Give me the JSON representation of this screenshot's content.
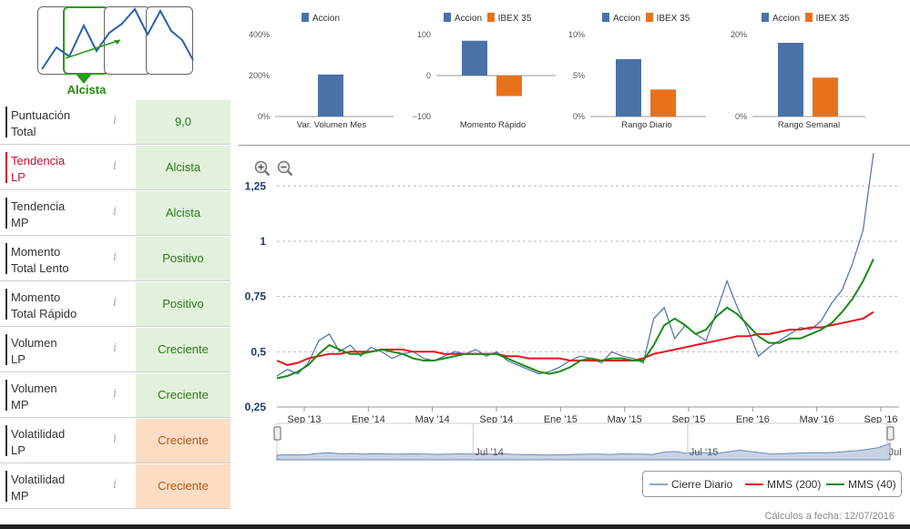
{
  "trend": {
    "selected_label": "Alcista",
    "color_selected": "#2a9a1a"
  },
  "metrics": [
    {
      "label": "Puntuación\nTotal",
      "value": "9,0",
      "tone": "green",
      "red_label": false
    },
    {
      "label": "Tendencia\nLP",
      "value": "Alcista",
      "tone": "green",
      "red_label": true
    },
    {
      "label": "Tendencia\nMP",
      "value": "Alcista",
      "tone": "green",
      "red_label": false
    },
    {
      "label": "Momento\nTotal Lento",
      "value": "Positivo",
      "tone": "green",
      "red_label": false
    },
    {
      "label": "Momento\nTotal Rápido",
      "value": "Positivo",
      "tone": "green",
      "red_label": false
    },
    {
      "label": "Volumen\nLP",
      "value": "Creciente",
      "tone": "green",
      "red_label": false
    },
    {
      "label": "Volumen\nMP",
      "value": "Creciente",
      "tone": "green",
      "red_label": false
    },
    {
      "label": "Volatilidad\nLP",
      "value": "Creciente",
      "tone": "orange",
      "red_label": false
    },
    {
      "label": "Volatilidad\nMP",
      "value": "Creciente",
      "tone": "orange",
      "red_label": false
    }
  ],
  "info_glyph": "i",
  "colors": {
    "accion": "#4a72a8",
    "ibex": "#e8721c",
    "green_bg": "#e2f1dc",
    "orange_bg": "#fcdcc3"
  },
  "mini_charts": {
    "legend_accion": "Accion",
    "legend_ibex": "IBEX 35",
    "charts": [
      {
        "caption": "Var. Volumen Mes",
        "ticks": [
          "400%",
          "200%",
          "0%"
        ],
        "ymin": 0,
        "ymax": 400,
        "accion": 205,
        "ibex": null
      },
      {
        "caption": "Momento Rápido",
        "ticks": [
          "100",
          "0",
          "−100"
        ],
        "ymin": -100,
        "ymax": 100,
        "accion": 85,
        "ibex": -50
      },
      {
        "caption": "Rango Diario",
        "ticks": [
          "10%",
          "5%",
          "0%"
        ],
        "ymin": 0,
        "ymax": 10,
        "accion": 7,
        "ibex": 3.3
      },
      {
        "caption": "Rango Semanal",
        "ticks": [
          "20%",
          "0%"
        ],
        "ymin": 0,
        "ymax": 20,
        "accion": 18,
        "ibex": 9.5
      }
    ]
  },
  "chart_data": {
    "type": "line",
    "y_ticks": [
      "1,25",
      "1",
      "0,75",
      "0,5",
      "0,25"
    ],
    "y_tick_values": [
      1.25,
      1.0,
      0.75,
      0.5,
      0.25
    ],
    "ylim": [
      0.25,
      1.35
    ],
    "x_ticks": [
      "Sep '13",
      "Ene '14",
      "May '14",
      "Sep '14",
      "Ene '15",
      "May '15",
      "Sep '15",
      "Ene '16",
      "May '16",
      "Sep '16"
    ],
    "navigator_labels": [
      "Jul '14",
      "Jul '15",
      "Jul"
    ],
    "series": [
      {
        "name": "Cierre Diario",
        "color": "#4a72a8",
        "values": [
          0.39,
          0.42,
          0.4,
          0.45,
          0.55,
          0.58,
          0.5,
          0.53,
          0.48,
          0.52,
          0.5,
          0.47,
          0.49,
          0.5,
          0.47,
          0.46,
          0.48,
          0.5,
          0.49,
          0.51,
          0.48,
          0.5,
          0.46,
          0.44,
          0.42,
          0.4,
          0.41,
          0.43,
          0.46,
          0.48,
          0.47,
          0.45,
          0.5,
          0.48,
          0.47,
          0.45,
          0.65,
          0.7,
          0.56,
          0.62,
          0.58,
          0.55,
          0.68,
          0.82,
          0.7,
          0.6,
          0.48,
          0.52,
          0.55,
          0.58,
          0.61,
          0.6,
          0.64,
          0.72,
          0.78,
          0.9,
          1.05,
          1.4
        ]
      },
      {
        "name": "MMS (200)",
        "color": "#e8141e",
        "values": [
          0.46,
          0.44,
          0.45,
          0.47,
          0.48,
          0.49,
          0.49,
          0.5,
          0.5,
          0.5,
          0.51,
          0.51,
          0.51,
          0.5,
          0.5,
          0.5,
          0.49,
          0.49,
          0.49,
          0.49,
          0.49,
          0.49,
          0.48,
          0.48,
          0.47,
          0.47,
          0.47,
          0.47,
          0.46,
          0.46,
          0.46,
          0.46,
          0.46,
          0.46,
          0.46,
          0.47,
          0.49,
          0.5,
          0.51,
          0.52,
          0.53,
          0.54,
          0.55,
          0.56,
          0.57,
          0.57,
          0.58,
          0.58,
          0.59,
          0.6,
          0.6,
          0.61,
          0.61,
          0.62,
          0.63,
          0.64,
          0.65,
          0.68
        ]
      },
      {
        "name": "MMS (40)",
        "color": "#1a8a14",
        "values": [
          0.38,
          0.39,
          0.41,
          0.44,
          0.49,
          0.53,
          0.51,
          0.49,
          0.49,
          0.5,
          0.51,
          0.5,
          0.49,
          0.47,
          0.46,
          0.46,
          0.47,
          0.48,
          0.49,
          0.49,
          0.49,
          0.49,
          0.47,
          0.45,
          0.43,
          0.41,
          0.4,
          0.41,
          0.43,
          0.46,
          0.47,
          0.46,
          0.47,
          0.47,
          0.46,
          0.46,
          0.53,
          0.62,
          0.65,
          0.62,
          0.58,
          0.6,
          0.66,
          0.7,
          0.67,
          0.62,
          0.57,
          0.54,
          0.54,
          0.56,
          0.56,
          0.58,
          0.6,
          0.63,
          0.68,
          0.74,
          0.82,
          0.92
        ]
      }
    ]
  },
  "legend": {
    "cierre": "Cierre Diario",
    "mms200": "MMS (200)",
    "mms40": "MMS (40)"
  },
  "footer": "Cálculos a fecha: 12/07/2016"
}
